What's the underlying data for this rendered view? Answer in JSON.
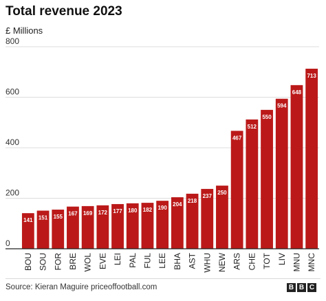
{
  "header": {
    "title": "Total revenue 2023",
    "subtitle": "£ Millions"
  },
  "footer": {
    "source": "Source: Kieran Maguire priceoffootball.com",
    "logo_letters": [
      "B",
      "B",
      "C"
    ]
  },
  "colors": {
    "bar": "#bb1919",
    "grid": "#dddddd",
    "axis": "#222222",
    "label_text": "#ffffff"
  },
  "chart_data": {
    "type": "bar",
    "title": "Total revenue 2023",
    "ylabel": "£ Millions",
    "xlabel": "",
    "ylim": [
      0,
      800
    ],
    "yticks": [
      0,
      200,
      400,
      600,
      800
    ],
    "grid": true,
    "categories": [
      "BOU",
      "SOU",
      "FOR",
      "BRE",
      "WOL",
      "EVE",
      "LEI",
      "PAL",
      "FUL",
      "LEE",
      "BHA",
      "AST",
      "WHU",
      "NEW",
      "ARS",
      "CHE",
      "TOT",
      "LIV",
      "MNU",
      "MNC"
    ],
    "values": [
      141,
      151,
      155,
      167,
      169,
      172,
      177,
      180,
      182,
      190,
      204,
      218,
      237,
      250,
      467,
      512,
      550,
      594,
      648,
      713
    ]
  }
}
